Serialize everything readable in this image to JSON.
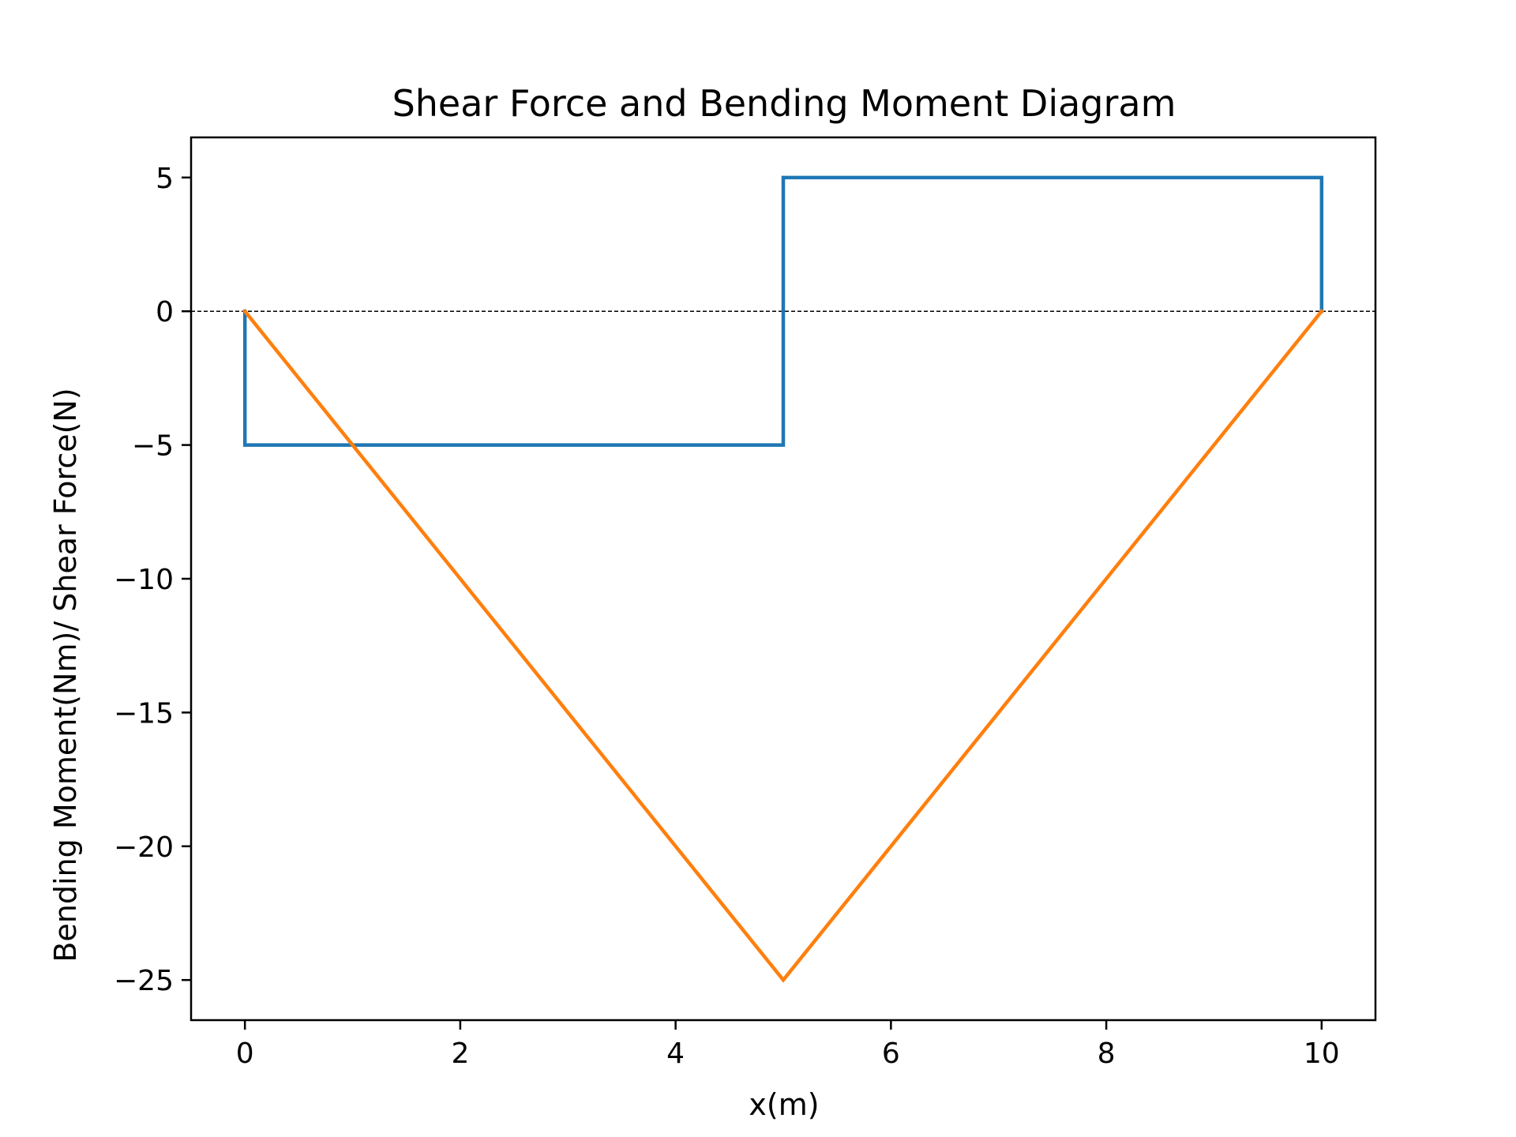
{
  "chart_data": {
    "type": "line",
    "title": "Shear Force and Bending Moment Diagram",
    "xlabel": "x(m)",
    "ylabel": "Bending Moment(Nm)/ Shear Force(N)",
    "xlim": [
      -0.5,
      10.5
    ],
    "ylim": [
      -26.5,
      6.5
    ],
    "xticks": [
      0,
      2,
      4,
      6,
      8,
      10
    ],
    "xtick_labels": [
      "0",
      "2",
      "4",
      "6",
      "8",
      "10"
    ],
    "yticks": [
      5,
      0,
      -5,
      -10,
      -15,
      -20,
      -25
    ],
    "ytick_labels": [
      "5",
      "0",
      "−5",
      "−10",
      "−15",
      "−20",
      "−25"
    ],
    "grid": false,
    "legend": "none",
    "series": [
      {
        "color": "#1f77b4",
        "style": "solid",
        "x": [
          0,
          0,
          5,
          5,
          10,
          10
        ],
        "y": [
          0,
          -5,
          -5,
          5,
          5,
          0
        ]
      },
      {
        "color": "#ff7f0e",
        "style": "solid",
        "x": [
          0,
          5,
          10
        ],
        "y": [
          0,
          -25,
          0
        ]
      }
    ],
    "reference_lines": [
      {
        "axis": "y",
        "value": 0,
        "style": "dashed",
        "color": "#000000"
      }
    ]
  }
}
